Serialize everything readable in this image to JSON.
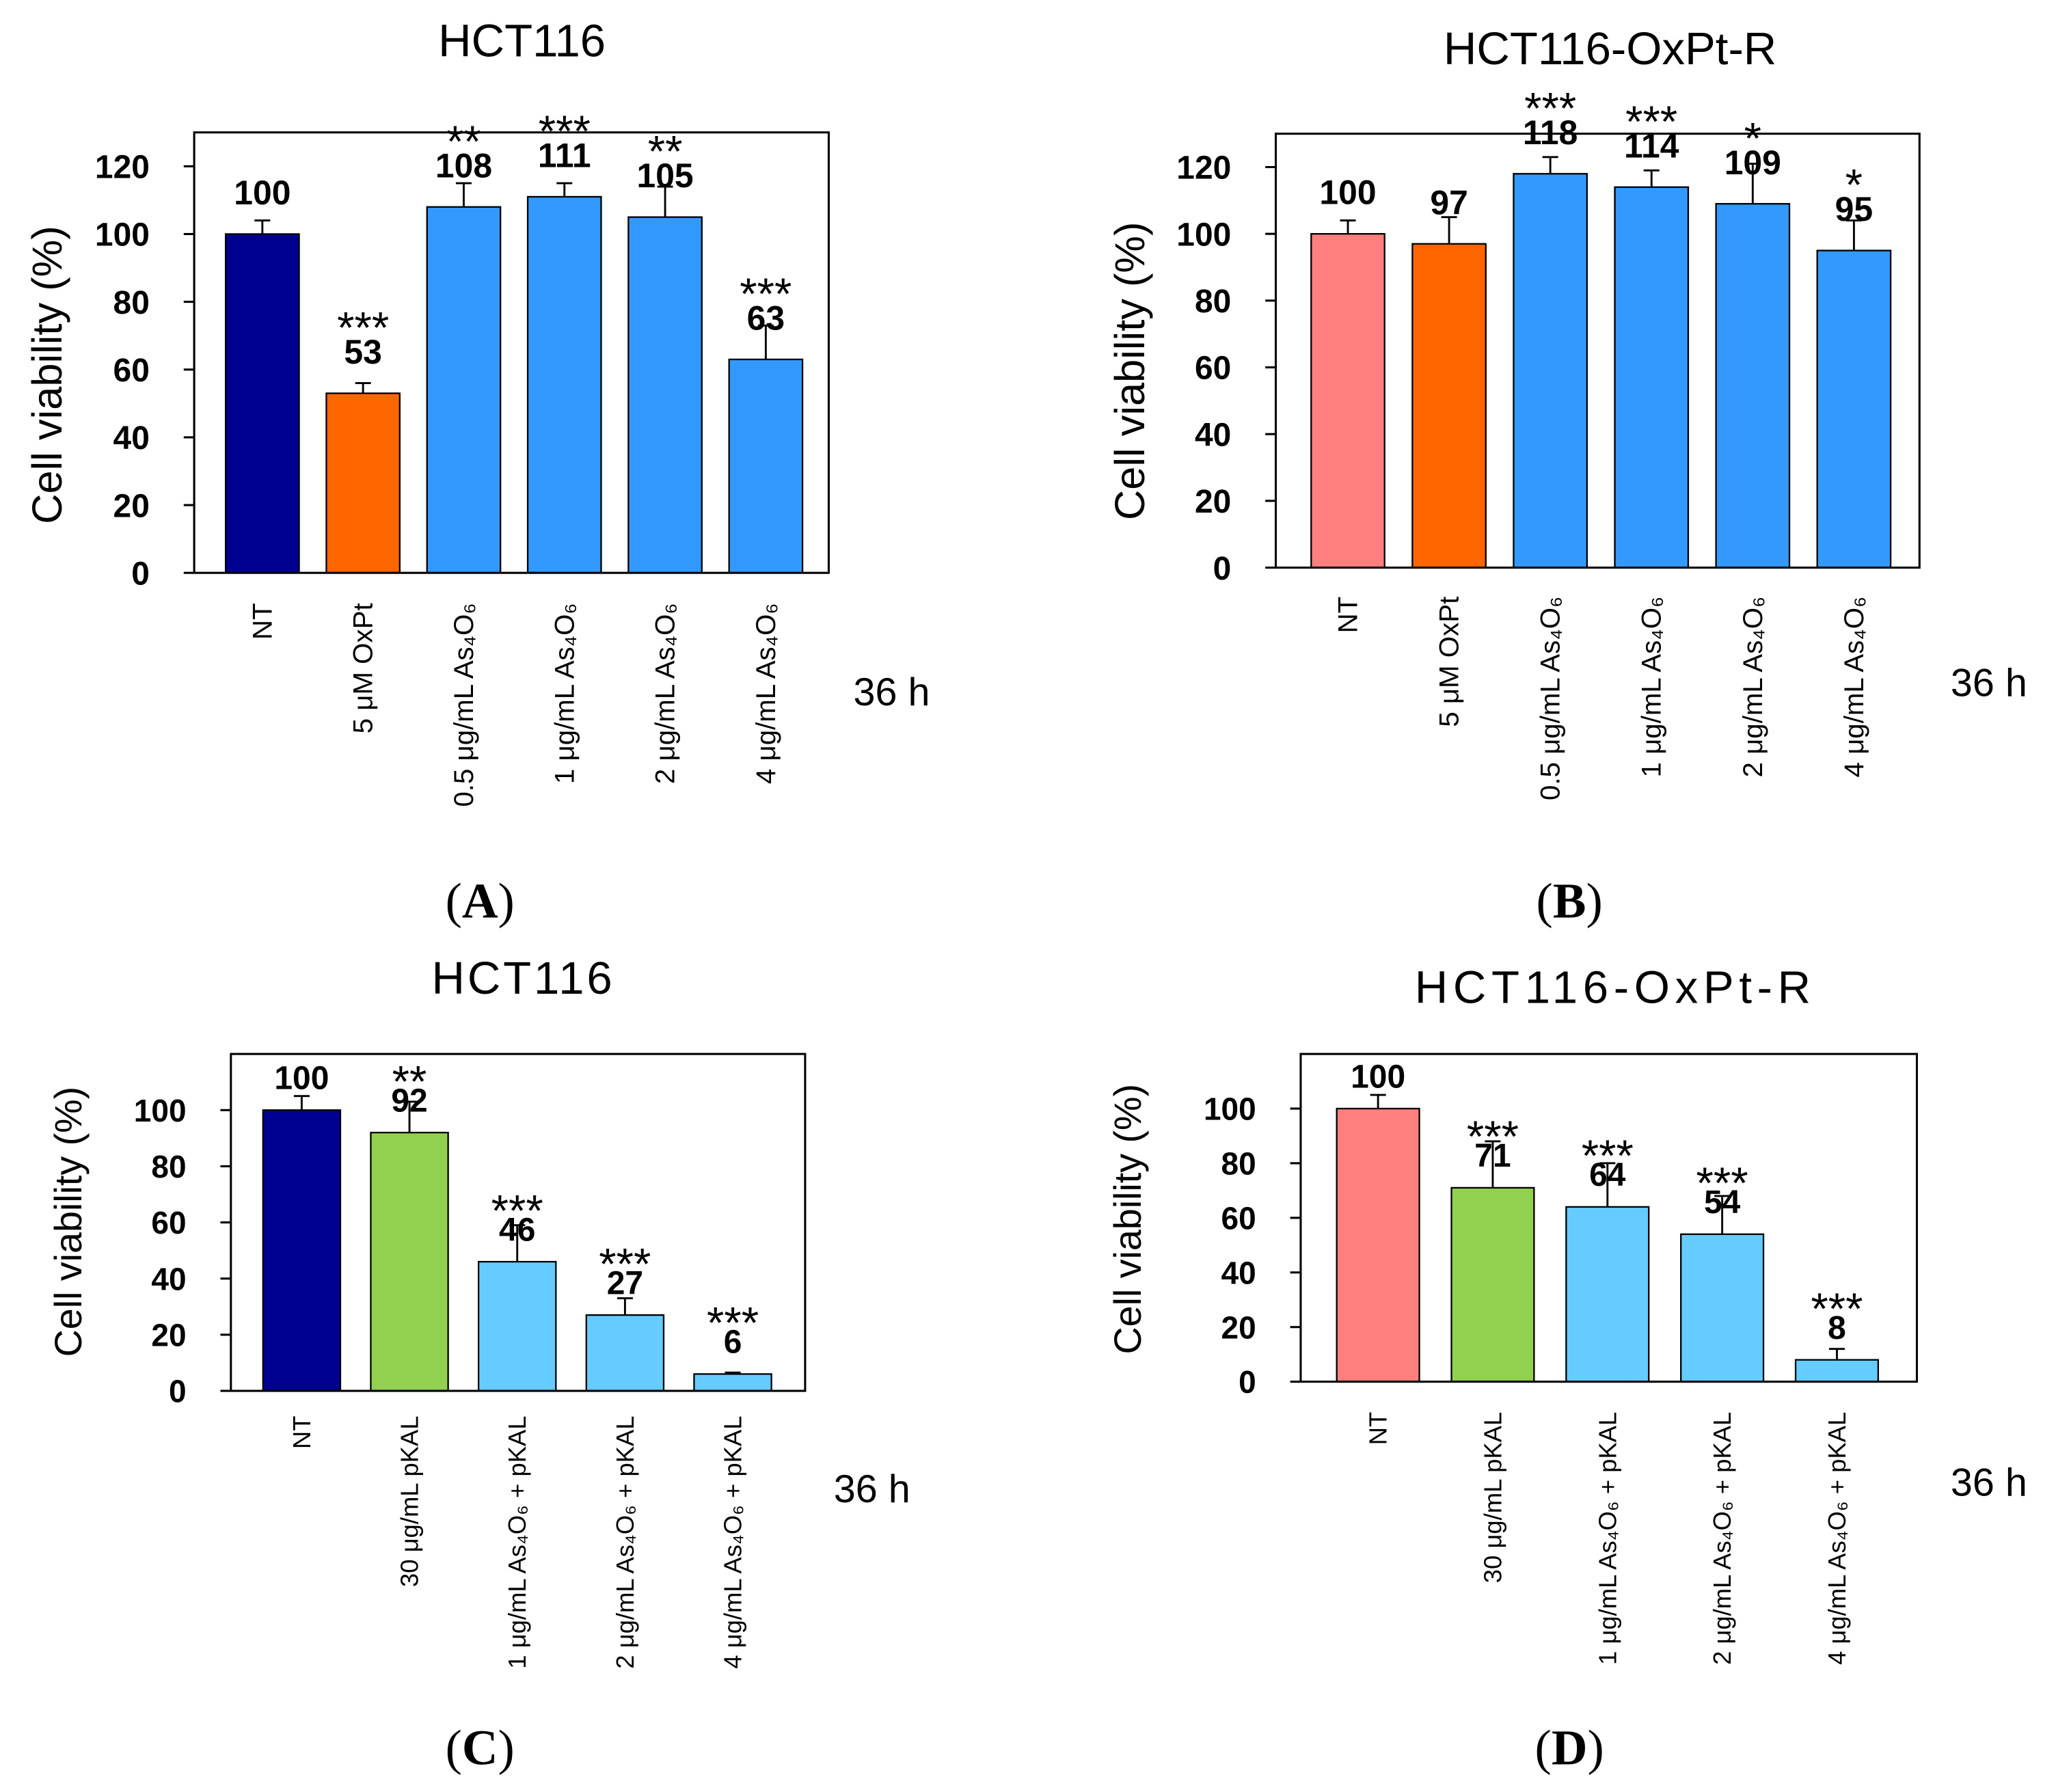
{
  "figure": {
    "panels": [
      {
        "open": "(",
        "letter": "A",
        "close": ")"
      },
      {
        "open": "(",
        "letter": "B",
        "close": ")"
      },
      {
        "open": "(",
        "letter": "C",
        "close": ")"
      },
      {
        "open": "(",
        "letter": "D",
        "close": ")"
      }
    ]
  },
  "chart_data": [
    {
      "type": "bar",
      "title": "HCT116",
      "ylabel": "Cell viability (%)",
      "time_label": "36 h",
      "categories": [
        "NT",
        "5 μM OxPt",
        "0.5 μg/mL As₄O₆",
        "1 μg/mL As₄O₆",
        "2 μg/mL As₄O₆",
        "4 μg/mL As₄O₆"
      ],
      "values": [
        100,
        53,
        108,
        111,
        105,
        63
      ],
      "errors": [
        4,
        3,
        7,
        4,
        9,
        10
      ],
      "significance": [
        "",
        "***",
        "**",
        "***",
        "**",
        "***"
      ],
      "significance_color": "#FF0000",
      "bar_colors": [
        "#000090",
        "#FF6600",
        "#3399FF",
        "#3399FF",
        "#3399FF",
        "#3399FF"
      ],
      "yticks": [
        0,
        20,
        40,
        60,
        80,
        100,
        120
      ],
      "ylim": [
        0,
        130
      ],
      "grid": false
    },
    {
      "type": "bar",
      "title": "HCT116-OxPt-R",
      "ylabel": "Cell viability (%)",
      "time_label": "36 h",
      "categories": [
        "NT",
        "5 μM OxPt",
        "0.5 μg/mL As₄O₆",
        "1 μg/mL As₄O₆",
        "2 μg/mL As₄O₆",
        "4 μg/mL As₄O₆"
      ],
      "values": [
        100,
        97,
        118,
        114,
        109,
        95
      ],
      "errors": [
        4,
        8,
        5,
        5,
        12,
        9
      ],
      "significance": [
        "",
        "",
        "***",
        "***",
        "*",
        "*"
      ],
      "significance_color": "#FF0000",
      "bar_colors": [
        "#FF7F7F",
        "#FF6600",
        "#3399FF",
        "#3399FF",
        "#3399FF",
        "#3399FF"
      ],
      "yticks": [
        0,
        20,
        40,
        60,
        80,
        100,
        120
      ],
      "ylim": [
        0,
        130
      ],
      "grid": false
    },
    {
      "type": "bar",
      "title": "HCT116",
      "ylabel": "Cell viability (%)",
      "time_label": "36 h",
      "categories": [
        "NT",
        "30 μg/mL pKAL",
        "1 μg/mL As₄O₆ + pKAL",
        "2 μg/mL As₄O₆ + pKAL",
        "4 μg/mL As₄O₆ + pKAL"
      ],
      "values": [
        100,
        92,
        46,
        27,
        6
      ],
      "errors": [
        5,
        11,
        13,
        6,
        0.5
      ],
      "significance": [
        "",
        "**",
        "***",
        "***",
        "***"
      ],
      "significance_color": "#FF0000",
      "bar_colors": [
        "#000090",
        "#92D050",
        "#66CCFF",
        "#66CCFF",
        "#66CCFF"
      ],
      "yticks": [
        0,
        20,
        40,
        60,
        80,
        100
      ],
      "ylim": [
        0,
        120
      ],
      "grid": false
    },
    {
      "type": "bar",
      "title": "HCT116-OxPt-R",
      "ylabel": "Cell viability (%)",
      "time_label": "36 h",
      "categories": [
        "NT",
        "30 μg/mL pKAL",
        "1 μg/mL As₄O₆ + pKAL",
        "2 μg/mL As₄O₆ + pKAL",
        "4 μg/mL As₄O₆ + pKAL"
      ],
      "values": [
        100,
        71,
        64,
        54,
        8
      ],
      "errors": [
        5,
        17,
        16,
        14,
        4
      ],
      "significance": [
        "",
        "***",
        "***",
        "***",
        "***"
      ],
      "significance_color": "#FF0000",
      "bar_colors": [
        "#FF7F7F",
        "#92D050",
        "#66CCFF",
        "#66CCFF",
        "#66CCFF"
      ],
      "yticks": [
        0,
        20,
        40,
        60,
        80,
        100
      ],
      "ylim": [
        0,
        120
      ],
      "grid": false
    }
  ]
}
